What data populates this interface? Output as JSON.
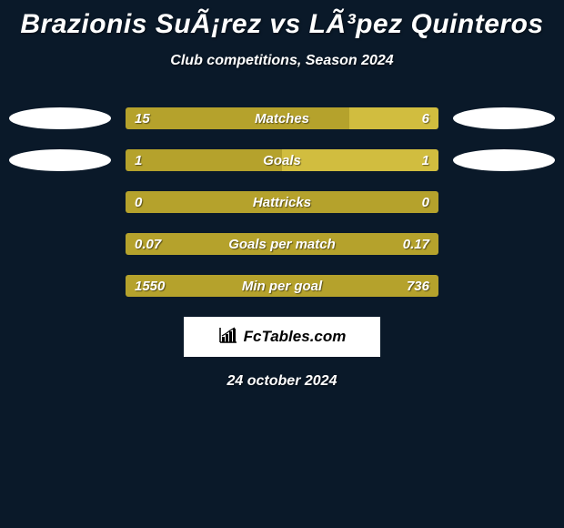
{
  "title": "Brazionis SuÃ¡rez vs LÃ³pez Quinteros",
  "subtitle": "Club competitions, Season 2024",
  "date": "24 october 2024",
  "logo_text": "FcTables.com",
  "colors": {
    "bar_left": "#b5a22c",
    "bar_right": "#d1bd3f",
    "background": "#0a1929",
    "ellipse": "#ffffff",
    "logo_bg": "#ffffff"
  },
  "bar_total_width": 344,
  "stats": [
    {
      "label": "Matches",
      "left_val": "15",
      "right_val": "6",
      "left_num": 15,
      "right_num": 6,
      "show_ellipses": true,
      "force_split": null
    },
    {
      "label": "Goals",
      "left_val": "1",
      "right_val": "1",
      "left_num": 1,
      "right_num": 1,
      "show_ellipses": true,
      "force_split": null
    },
    {
      "label": "Hattricks",
      "left_val": "0",
      "right_val": "0",
      "left_num": 0,
      "right_num": 0,
      "show_ellipses": false,
      "force_split": 1.0
    },
    {
      "label": "Goals per match",
      "left_val": "0.07",
      "right_val": "0.17",
      "left_num": 0.07,
      "right_num": 0.17,
      "show_ellipses": false,
      "force_split": 1.0
    },
    {
      "label": "Min per goal",
      "left_val": "1550",
      "right_val": "736",
      "left_num": 1550,
      "right_num": 736,
      "show_ellipses": false,
      "force_split": 1.0
    }
  ]
}
